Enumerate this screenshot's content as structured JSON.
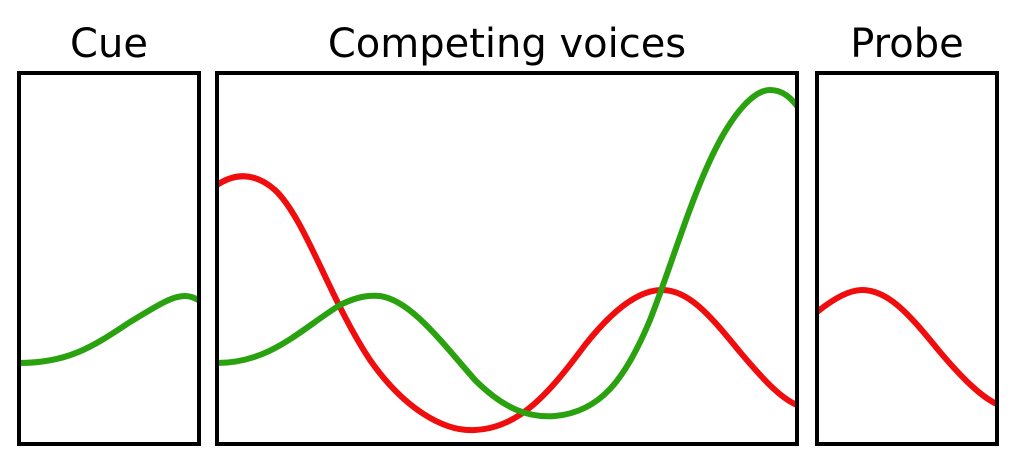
{
  "titles": {
    "cue": "Cue",
    "competing_voices": "Competing voices",
    "probe": "Probe"
  },
  "colors": {
    "frame": "#000000",
    "voice_a": "#2aa10f",
    "voice_b": "#f00d0d",
    "background": "#ffffff"
  },
  "voices": [
    {
      "id": "voice_a",
      "color_key": "voice_a"
    },
    {
      "id": "voice_b",
      "color_key": "voice_b"
    }
  ]
}
